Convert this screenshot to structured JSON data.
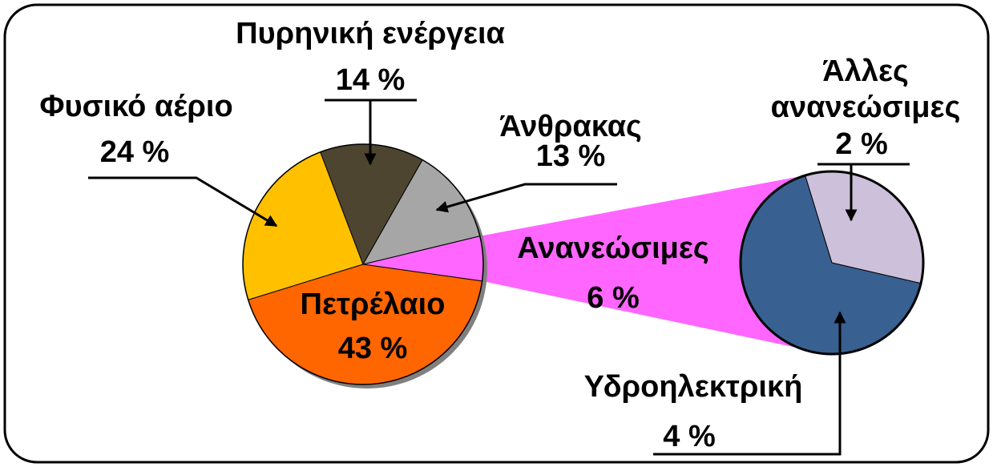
{
  "chart_data": {
    "type": "pie",
    "categories": [
      "Φυσικό αέριο",
      "Πυρηνική ενέργεια",
      "Άνθρακας",
      "Ανανεώσιμες",
      "Πετρέλαιο"
    ],
    "values": [
      24,
      14,
      13,
      6,
      43
    ],
    "value_labels": [
      "24 %",
      "14 %",
      "13 %",
      "6 %",
      "43 %"
    ],
    "colors": [
      "#ffc000",
      "#4d4530",
      "#a6a6a6",
      "#ff66ff",
      "#ff6600"
    ],
    "secondary": {
      "categories": [
        "Υδροηλεκτρική",
        "Άλλες ανανεώσιμες"
      ],
      "values": [
        4,
        2
      ],
      "value_labels": [
        "4 %",
        "2 %"
      ],
      "colors": [
        "#386090",
        "#ccc0da"
      ]
    }
  }
}
